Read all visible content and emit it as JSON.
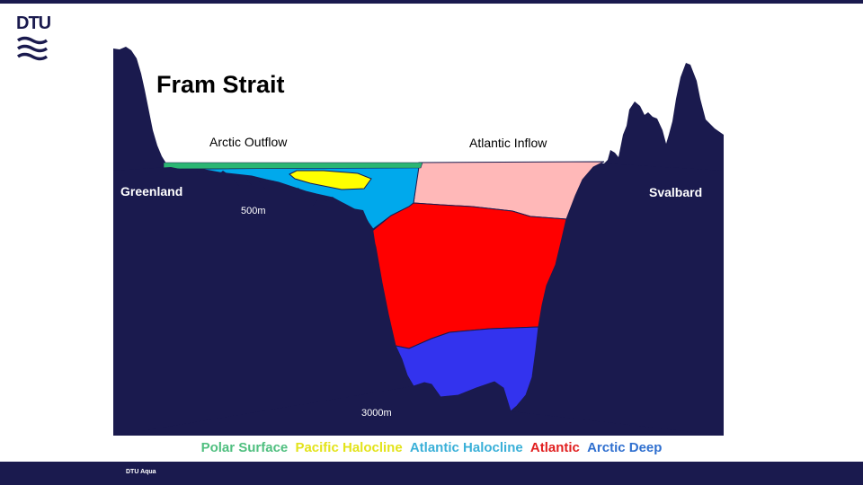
{
  "logo": {
    "text": "DTU"
  },
  "footer": {
    "text": "DTU Aqua"
  },
  "diagram": {
    "title": "Fram Strait",
    "labels": {
      "arctic_outflow": "Arctic Outflow",
      "atlantic_inflow": "Atlantic Inflow",
      "greenland": "Greenland",
      "svalbard": "Svalbard",
      "depth_500": "500m",
      "depth_3000": "3000m"
    },
    "colors": {
      "terrain": "#1a1a4e",
      "polar_surface": "#2bb673",
      "pacific_halocline": "#ffff00",
      "atlantic_halocline": "#00a9ec",
      "atlantic_inflow_layer": "#ffb8b8",
      "atlantic": "#ff0000",
      "arctic_deep": "#3333ee"
    }
  },
  "legend": {
    "items": [
      {
        "label": "Polar Surface",
        "color": "#4fbf7f"
      },
      {
        "label": "Pacific Halocline",
        "color": "#e3e31a"
      },
      {
        "label": "Atlantic Halocline",
        "color": "#3ab0d8"
      },
      {
        "label": "Atlantic",
        "color": "#e11f1f"
      },
      {
        "label": "Arctic Deep",
        "color": "#2f6fcf"
      }
    ]
  }
}
